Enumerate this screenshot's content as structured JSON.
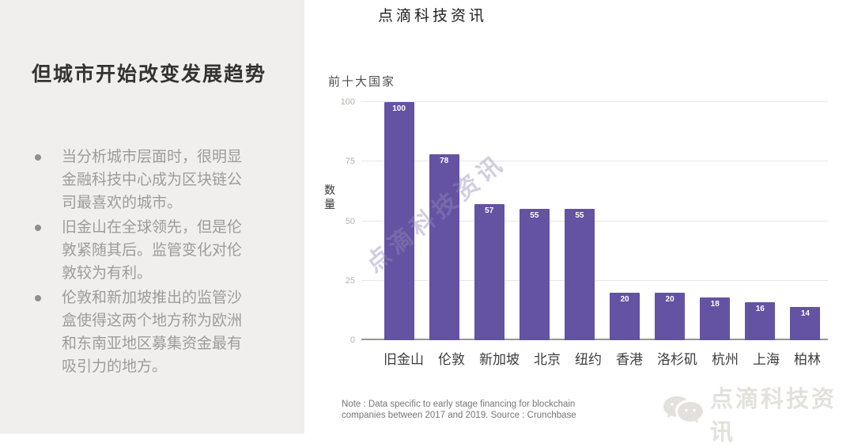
{
  "header": {
    "brand": "点滴科技资讯"
  },
  "sidebar": {
    "title": "但城市开始改变发展趋势",
    "bullets": [
      "当分析城市层面时，很明显金融科技中心成为区块链公司最喜欢的城市。",
      "旧金山在全球领先，但是伦敦紧随其后。监管变化对伦敦较为有利。",
      "伦敦和新加坡推出的监管沙盒使得这两个地方称为欧洲和东南亚地区募集资金最有吸引力的地方。"
    ]
  },
  "chart": {
    "title": "前十大国家",
    "note_lines": [
      "Note : Data specific to early stage financing for blockchain",
      "companies between 2017 and 2019. Source : Crunchbase"
    ]
  },
  "chart_data": {
    "type": "bar",
    "title": "前十大国家",
    "categories": [
      "旧金山",
      "伦敦",
      "新加坡",
      "北京",
      "纽约",
      "香港",
      "洛杉矶",
      "杭州",
      "上海",
      "柏林"
    ],
    "values": [
      100,
      78,
      57,
      55,
      55,
      20,
      20,
      18,
      16,
      14
    ],
    "xlabel": "",
    "ylabel": "数量",
    "ylim": [
      0,
      100
    ],
    "yticks": [
      0,
      25,
      50,
      75,
      100
    ],
    "grid": true,
    "legend": "none",
    "bar_color": "#6452a3",
    "bar_label_color": "#ffffff"
  },
  "watermarks": {
    "diagonal_text": "点滴科技资讯",
    "footer_text": "点滴科技资讯",
    "footer_icon": "chat-bubbles-icon"
  }
}
